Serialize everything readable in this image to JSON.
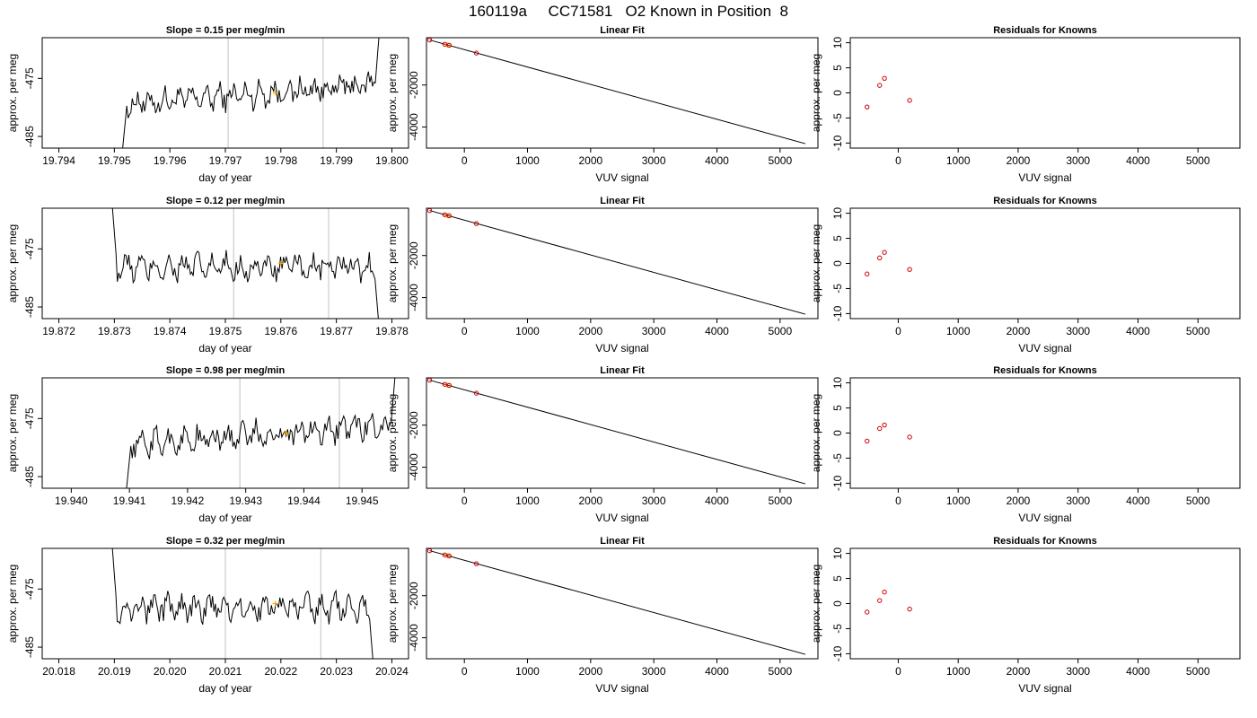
{
  "figure": {
    "title": "160119a     CC71581   O2 Known in Position  8"
  },
  "chart_data": [
    {
      "type": "line",
      "row": 0,
      "title": "Slope =  0.15  per meg/min",
      "xlabel": "day of year",
      "ylabel": "approx. per meg",
      "xlim": [
        19.7937,
        19.8003
      ],
      "ylim": [
        -487,
        -468
      ],
      "xticks": [
        "19.794",
        "19.795",
        "19.796",
        "19.797",
        "19.798",
        "19.799",
        "19.800"
      ],
      "xtick_values": [
        19.794,
        19.795,
        19.796,
        19.797,
        19.798,
        19.799,
        19.8
      ],
      "yticks": [
        "-475",
        "-485"
      ],
      "ytick_values": [
        -475,
        -485
      ],
      "vlines": [
        19.79705,
        19.79876
      ],
      "segment": [
        19.7951,
        19.7998
      ],
      "marker_x": 19.7979,
      "trend": "rising",
      "line_color": "#000000",
      "vline_color": "#cccccc",
      "marker_color": "#ffa500"
    },
    {
      "type": "scatter",
      "row": 0,
      "title": "Linear Fit",
      "xlabel": "VUV signal",
      "ylabel": "approx. per meg",
      "xlim": [
        -600,
        5600
      ],
      "ylim": [
        -5000,
        250
      ],
      "xticks": [
        "0",
        "1000",
        "2000",
        "3000",
        "4000",
        "5000"
      ],
      "xtick_values": [
        0,
        1000,
        2000,
        3000,
        4000,
        5000
      ],
      "yticks": [
        "-2000",
        "-4000"
      ],
      "ytick_values": [
        -2000,
        -4000
      ],
      "points": [
        {
          "x": -550,
          "y": 140
        },
        {
          "x": -310,
          "y": -60
        },
        {
          "x": -240,
          "y": -110
        },
        {
          "x": 190,
          "y": -480
        }
      ],
      "unknown_points": [
        {
          "x": -260,
          "y": -100
        }
      ],
      "fit_line": {
        "x": [
          -550,
          5400
        ],
        "y": [
          140,
          -4790
        ]
      },
      "point_color": "#cc0000",
      "line_color": "#000000",
      "unknown_color": "#ffa500"
    },
    {
      "type": "scatter",
      "row": 0,
      "title": "Residuals for Knowns",
      "xlabel": "VUV signal",
      "ylabel": "approx. per meg",
      "xlim": [
        -800,
        5700
      ],
      "ylim": [
        -11,
        11
      ],
      "xticks": [
        "0",
        "1000",
        "2000",
        "3000",
        "4000",
        "5000"
      ],
      "xtick_values": [
        0,
        1000,
        2000,
        3000,
        4000,
        5000
      ],
      "yticks": [
        "-10",
        "-5",
        "0",
        "5",
        "10"
      ],
      "ytick_values": [
        -10,
        -5,
        0,
        5,
        10
      ],
      "points": [
        {
          "x": -520,
          "y": -2.8
        },
        {
          "x": -310,
          "y": 1.5
        },
        {
          "x": -230,
          "y": 2.9
        },
        {
          "x": 190,
          "y": -1.5
        }
      ],
      "point_color": "#cc0000"
    },
    {
      "type": "line",
      "row": 1,
      "title": "Slope =  0.12  per meg/min",
      "xlabel": "day of year",
      "ylabel": "approx. per meg",
      "xlim": [
        19.8717,
        19.8783
      ],
      "ylim": [
        -487,
        -468
      ],
      "xticks": [
        "19.872",
        "19.873",
        "19.874",
        "19.875",
        "19.876",
        "19.877",
        "19.878"
      ],
      "xtick_values": [
        19.872,
        19.873,
        19.874,
        19.875,
        19.876,
        19.877,
        19.878
      ],
      "yticks": [
        "-475",
        "-485"
      ],
      "ytick_values": [
        -475,
        -485
      ],
      "vlines": [
        19.87515,
        19.87686
      ],
      "segment": [
        19.8729,
        19.8778
      ],
      "marker_x": 19.876,
      "trend": "flat",
      "line_color": "#000000",
      "vline_color": "#cccccc",
      "marker_color": "#ffa500"
    },
    {
      "type": "scatter",
      "row": 1,
      "title": "Linear Fit",
      "xlabel": "VUV signal",
      "ylabel": "approx. per meg",
      "xlim": [
        -600,
        5600
      ],
      "ylim": [
        -5000,
        250
      ],
      "xticks": [
        "0",
        "1000",
        "2000",
        "3000",
        "4000",
        "5000"
      ],
      "xtick_values": [
        0,
        1000,
        2000,
        3000,
        4000,
        5000
      ],
      "yticks": [
        "-2000",
        "-4000"
      ],
      "ytick_values": [
        -2000,
        -4000
      ],
      "points": [
        {
          "x": -550,
          "y": 140
        },
        {
          "x": -310,
          "y": -60
        },
        {
          "x": -240,
          "y": -110
        },
        {
          "x": 190,
          "y": -480
        }
      ],
      "unknown_points": [
        {
          "x": -260,
          "y": -100
        }
      ],
      "fit_line": {
        "x": [
          -550,
          5400
        ],
        "y": [
          140,
          -4790
        ]
      },
      "point_color": "#cc0000",
      "line_color": "#000000",
      "unknown_color": "#ffa500"
    },
    {
      "type": "scatter",
      "row": 1,
      "title": "Residuals for Knowns",
      "xlabel": "VUV signal",
      "ylabel": "approx. per meg",
      "xlim": [
        -800,
        5700
      ],
      "ylim": [
        -11,
        11
      ],
      "xticks": [
        "0",
        "1000",
        "2000",
        "3000",
        "4000",
        "5000"
      ],
      "xtick_values": [
        0,
        1000,
        2000,
        3000,
        4000,
        5000
      ],
      "yticks": [
        "-10",
        "-5",
        "0",
        "5",
        "10"
      ],
      "ytick_values": [
        -10,
        -5,
        0,
        5,
        10
      ],
      "points": [
        {
          "x": -520,
          "y": -2.1
        },
        {
          "x": -310,
          "y": 1.1
        },
        {
          "x": -230,
          "y": 2.2
        },
        {
          "x": 190,
          "y": -1.2
        }
      ],
      "point_color": "#cc0000"
    },
    {
      "type": "line",
      "row": 2,
      "title": "Slope =  0.98  per meg/min",
      "xlabel": "day of year",
      "ylabel": "approx. per meg",
      "xlim": [
        19.9395,
        19.9458
      ],
      "ylim": [
        -487,
        -468
      ],
      "xticks": [
        "19.940",
        "19.941",
        "19.942",
        "19.943",
        "19.944",
        "19.945"
      ],
      "xtick_values": [
        19.94,
        19.941,
        19.942,
        19.943,
        19.944,
        19.945
      ],
      "yticks": [
        "-475",
        "-485"
      ],
      "ytick_values": [
        -475,
        -485
      ],
      "vlines": [
        19.9429,
        19.94461
      ],
      "segment": [
        19.9409,
        19.9456
      ],
      "marker_x": 19.9437,
      "trend": "rising",
      "line_color": "#000000",
      "vline_color": "#cccccc",
      "marker_color": "#ffa500"
    },
    {
      "type": "scatter",
      "row": 2,
      "title": "Linear Fit",
      "xlabel": "VUV signal",
      "ylabel": "approx. per meg",
      "xlim": [
        -600,
        5600
      ],
      "ylim": [
        -5000,
        250
      ],
      "xticks": [
        "0",
        "1000",
        "2000",
        "3000",
        "4000",
        "5000"
      ],
      "xtick_values": [
        0,
        1000,
        2000,
        3000,
        4000,
        5000
      ],
      "yticks": [
        "-2000",
        "-4000"
      ],
      "ytick_values": [
        -2000,
        -4000
      ],
      "points": [
        {
          "x": -550,
          "y": 140
        },
        {
          "x": -310,
          "y": -60
        },
        {
          "x": -240,
          "y": -110
        },
        {
          "x": 190,
          "y": -480
        }
      ],
      "unknown_points": [
        {
          "x": -260,
          "y": -100
        }
      ],
      "fit_line": {
        "x": [
          -550,
          5400
        ],
        "y": [
          140,
          -4790
        ]
      },
      "point_color": "#cc0000",
      "line_color": "#000000",
      "unknown_color": "#ffa500"
    },
    {
      "type": "scatter",
      "row": 2,
      "title": "Residuals for Knowns",
      "xlabel": "VUV signal",
      "ylabel": "approx. per meg",
      "xlim": [
        -800,
        5700
      ],
      "ylim": [
        -11,
        11
      ],
      "xticks": [
        "0",
        "1000",
        "2000",
        "3000",
        "4000",
        "5000"
      ],
      "xtick_values": [
        0,
        1000,
        2000,
        3000,
        4000,
        5000
      ],
      "yticks": [
        "-10",
        "-5",
        "0",
        "5",
        "10"
      ],
      "ytick_values": [
        -10,
        -5,
        0,
        5,
        10
      ],
      "points": [
        {
          "x": -520,
          "y": -1.6
        },
        {
          "x": -310,
          "y": 0.9
        },
        {
          "x": -230,
          "y": 1.6
        },
        {
          "x": 190,
          "y": -0.8
        }
      ],
      "point_color": "#cc0000"
    },
    {
      "type": "line",
      "row": 3,
      "title": "Slope =  0.32  per meg/min",
      "xlabel": "day of year",
      "ylabel": "approx. per meg",
      "xlim": [
        20.0177,
        20.0243
      ],
      "ylim": [
        -487,
        -468
      ],
      "xticks": [
        "20.018",
        "20.019",
        "20.020",
        "20.021",
        "20.022",
        "20.023",
        "20.024"
      ],
      "xtick_values": [
        20.018,
        20.019,
        20.02,
        20.021,
        20.022,
        20.023,
        20.024
      ],
      "yticks": [
        "-475",
        "-485"
      ],
      "ytick_values": [
        -475,
        -485
      ],
      "vlines": [
        20.021,
        20.02272
      ],
      "segment": [
        20.0189,
        20.0237
      ],
      "marker_x": 20.0219,
      "trend": "flat",
      "line_color": "#000000",
      "vline_color": "#cccccc",
      "marker_color": "#ffa500"
    },
    {
      "type": "scatter",
      "row": 3,
      "title": "Linear Fit",
      "xlabel": "VUV signal",
      "ylabel": "approx. per meg",
      "xlim": [
        -600,
        5600
      ],
      "ylim": [
        -5000,
        250
      ],
      "xticks": [
        "0",
        "1000",
        "2000",
        "3000",
        "4000",
        "5000"
      ],
      "xtick_values": [
        0,
        1000,
        2000,
        3000,
        4000,
        5000
      ],
      "yticks": [
        "-2000",
        "-4000"
      ],
      "ytick_values": [
        -2000,
        -4000
      ],
      "points": [
        {
          "x": -550,
          "y": 140
        },
        {
          "x": -310,
          "y": -60
        },
        {
          "x": -240,
          "y": -110
        },
        {
          "x": 190,
          "y": -480
        }
      ],
      "unknown_points": [
        {
          "x": -260,
          "y": -100
        }
      ],
      "fit_line": {
        "x": [
          -550,
          5400
        ],
        "y": [
          140,
          -4790
        ]
      },
      "point_color": "#cc0000",
      "line_color": "#000000",
      "unknown_color": "#ffa500"
    },
    {
      "type": "scatter",
      "row": 3,
      "title": "Residuals for Knowns",
      "xlabel": "VUV signal",
      "ylabel": "approx. per meg",
      "xlim": [
        -800,
        5700
      ],
      "ylim": [
        -11,
        11
      ],
      "xticks": [
        "0",
        "1000",
        "2000",
        "3000",
        "4000",
        "5000"
      ],
      "xtick_values": [
        0,
        1000,
        2000,
        3000,
        4000,
        5000
      ],
      "yticks": [
        "-10",
        "-5",
        "0",
        "5",
        "10"
      ],
      "ytick_values": [
        -10,
        -5,
        0,
        5,
        10
      ],
      "points": [
        {
          "x": -520,
          "y": -1.7
        },
        {
          "x": -310,
          "y": 0.6
        },
        {
          "x": -230,
          "y": 2.3
        },
        {
          "x": 190,
          "y": -1.1
        }
      ],
      "point_color": "#cc0000"
    }
  ]
}
